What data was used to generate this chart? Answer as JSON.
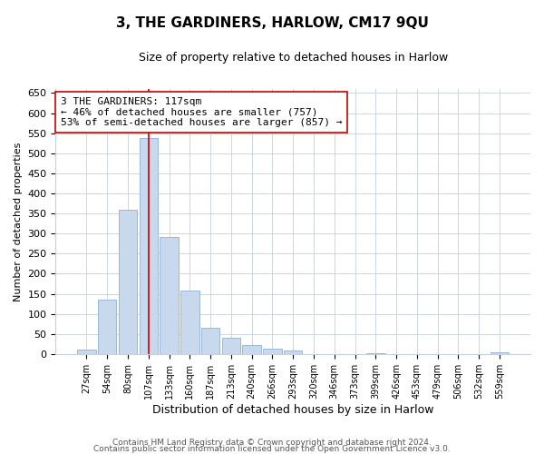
{
  "title": "3, THE GARDINERS, HARLOW, CM17 9QU",
  "subtitle": "Size of property relative to detached houses in Harlow",
  "xlabel": "Distribution of detached houses by size in Harlow",
  "ylabel": "Number of detached properties",
  "bar_labels": [
    "27sqm",
    "54sqm",
    "80sqm",
    "107sqm",
    "133sqm",
    "160sqm",
    "187sqm",
    "213sqm",
    "240sqm",
    "266sqm",
    "293sqm",
    "320sqm",
    "346sqm",
    "373sqm",
    "399sqm",
    "426sqm",
    "453sqm",
    "479sqm",
    "506sqm",
    "532sqm",
    "559sqm"
  ],
  "bar_values": [
    10,
    135,
    360,
    537,
    291,
    158,
    65,
    40,
    22,
    14,
    8,
    0,
    0,
    0,
    3,
    0,
    0,
    0,
    0,
    0,
    4
  ],
  "bar_color": "#c8d9ed",
  "bar_edge_color": "#9ab8d8",
  "vline_x": 3,
  "vline_color": "#cc0000",
  "annotation_text": "3 THE GARDINERS: 117sqm\n← 46% of detached houses are smaller (757)\n53% of semi-detached houses are larger (857) →",
  "annotation_box_color": "#ffffff",
  "annotation_box_edge": "#cc0000",
  "ylim": [
    0,
    660
  ],
  "yticks": [
    0,
    50,
    100,
    150,
    200,
    250,
    300,
    350,
    400,
    450,
    500,
    550,
    600,
    650
  ],
  "footer_line1": "Contains HM Land Registry data © Crown copyright and database right 2024.",
  "footer_line2": "Contains public sector information licensed under the Open Government Licence v3.0.",
  "background_color": "#ffffff",
  "grid_color": "#c8d0dc",
  "title_fontsize": 11,
  "subtitle_fontsize": 9,
  "xlabel_fontsize": 9,
  "ylabel_fontsize": 8,
  "tick_fontsize": 8,
  "annotation_fontsize": 8,
  "footer_fontsize": 6.5
}
